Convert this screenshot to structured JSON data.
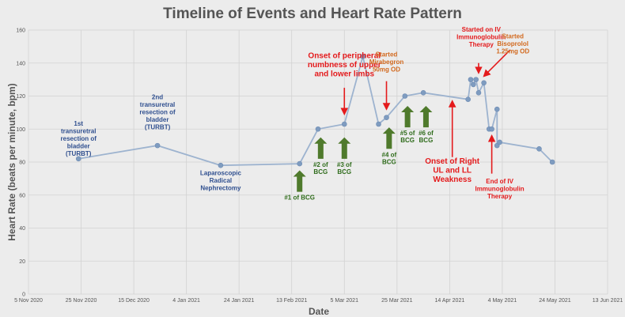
{
  "chart_data": {
    "type": "line",
    "title": "Timeline of Events and Heart Rate Pattern",
    "xlabel": "Date",
    "ylabel": "Heart Rate (beats per minute, bpm)",
    "ylim": [
      0,
      160
    ],
    "yticks": [
      0,
      20,
      40,
      60,
      80,
      100,
      120,
      140,
      160
    ],
    "xlim": [
      "2020-11-05",
      "2021-06-13"
    ],
    "xticks": [
      {
        "date": "2020-11-05",
        "label": "5 Nov 2020"
      },
      {
        "date": "2020-11-25",
        "label": "25 Nov 2020"
      },
      {
        "date": "2020-12-15",
        "label": "15 Dec 2020"
      },
      {
        "date": "2021-01-04",
        "label": "4 Jan 2021"
      },
      {
        "date": "2021-01-24",
        "label": "24 Jan 2021"
      },
      {
        "date": "2021-02-13",
        "label": "13 Feb 2021"
      },
      {
        "date": "2021-03-05",
        "label": "5 Mar 2021"
      },
      {
        "date": "2021-03-25",
        "label": "25 Mar 2021"
      },
      {
        "date": "2021-04-14",
        "label": "14 Apr 2021"
      },
      {
        "date": "2021-05-04",
        "label": "4 May 2021"
      },
      {
        "date": "2021-05-24",
        "label": "24 May 2021"
      },
      {
        "date": "2021-06-13",
        "label": "13 Jun 2021"
      }
    ],
    "grid": true,
    "line_color": "#9db3cf",
    "marker_color": "#7f9cc0",
    "series": [
      {
        "points": [
          {
            "x": "2020-11-24",
            "y": 82
          },
          {
            "x": "2020-12-24",
            "y": 90
          },
          {
            "x": "2021-01-17",
            "y": 78
          },
          {
            "x": "2021-02-16",
            "y": 79
          },
          {
            "x": "2021-02-23",
            "y": 100
          },
          {
            "x": "2021-03-05",
            "y": 103
          },
          {
            "x": "2021-03-12",
            "y": 144
          },
          {
            "x": "2021-03-18",
            "y": 103
          },
          {
            "x": "2021-03-21",
            "y": 107
          },
          {
            "x": "2021-03-28",
            "y": 120
          },
          {
            "x": "2021-04-04",
            "y": 122
          },
          {
            "x": "2021-04-21",
            "y": 118
          },
          {
            "x": "2021-04-22",
            "y": 130
          },
          {
            "x": "2021-04-23",
            "y": 127
          },
          {
            "x": "2021-04-24",
            "y": 130
          },
          {
            "x": "2021-04-25",
            "y": 122
          },
          {
            "x": "2021-04-27",
            "y": 128
          },
          {
            "x": "2021-04-29",
            "y": 100
          },
          {
            "x": "2021-04-30",
            "y": 100
          },
          {
            "x": "2021-05-02",
            "y": 112
          },
          {
            "x": "2021-05-02",
            "y": 90
          },
          {
            "x": "2021-05-03",
            "y": 92
          },
          {
            "x": "2021-05-18",
            "y": 88
          },
          {
            "x": "2021-05-23",
            "y": 80
          }
        ]
      }
    ],
    "annotations": [
      {
        "id": "turbt1",
        "lines": [
          "1st",
          "transuretral",
          "resection of",
          "bladder",
          "(TURBT)"
        ],
        "color": "#2f4f8f",
        "size": 8,
        "x": "2020-11-24",
        "y": 102
      },
      {
        "id": "turbt2",
        "lines": [
          "2nd",
          "transuretral",
          "resection of",
          "bladder",
          "(TURBT)"
        ],
        "color": "#2f4f8f",
        "size": 8,
        "x": "2020-12-24",
        "y": 118
      },
      {
        "id": "nephrectomy",
        "lines": [
          "Laparoscopic",
          "Radical",
          "Nephrectomy"
        ],
        "color": "#2f4f8f",
        "size": 8,
        "x": "2021-01-17",
        "y": 72
      },
      {
        "id": "numbness",
        "lines": [
          "Onset of peripheral",
          "numbness of upper",
          "and lower limbs"
        ],
        "color": "#e41a1c",
        "size": 10,
        "x": "2021-03-05",
        "y": 143
      },
      {
        "id": "mirabegron",
        "lines": [
          "Started",
          "Mirabegron",
          "50mg OD"
        ],
        "color": "#d2691e",
        "size": 8,
        "x": "2021-03-21",
        "y": 144
      },
      {
        "id": "right-weakness",
        "lines": [
          "Onset of Right",
          "UL and LL",
          "Weakness"
        ],
        "color": "#e41a1c",
        "size": 10,
        "x": "2021-04-15",
        "y": 79
      },
      {
        "id": "ivig-start",
        "lines": [
          "Started on IV",
          "Immunoglobulin",
          "Therapy"
        ],
        "color": "#e41a1c",
        "size": 8,
        "x": "2021-04-26",
        "y": 159
      },
      {
        "id": "bisoprolol",
        "lines": [
          "Started",
          "Bisoprolol",
          "1.25mg OD"
        ],
        "color": "#d2691e",
        "size": 8,
        "x": "2021-05-08",
        "y": 155
      },
      {
        "id": "ivig-end",
        "lines": [
          "End of IV",
          "Immunoglobulin",
          "Therapy"
        ],
        "color": "#e41a1c",
        "size": 8,
        "x": "2021-05-03",
        "y": 67
      }
    ],
    "bcg_doses": [
      {
        "id": "bcg1",
        "lines": [
          "#1 of BCG"
        ],
        "x": "2021-02-16",
        "arrow_top": 75,
        "arrow_bottom": 62
      },
      {
        "id": "bcg2",
        "lines": [
          "#2 of",
          "BCG"
        ],
        "x": "2021-02-24",
        "arrow_top": 95,
        "arrow_bottom": 82
      },
      {
        "id": "bcg3",
        "lines": [
          "#3 of",
          "BCG"
        ],
        "x": "2021-03-05",
        "arrow_top": 95,
        "arrow_bottom": 82
      },
      {
        "id": "bcg4",
        "lines": [
          "#4 of",
          "BCG"
        ],
        "x": "2021-03-22",
        "arrow_top": 101,
        "arrow_bottom": 88
      },
      {
        "id": "bcg5",
        "lines": [
          "#5 of",
          "BCG"
        ],
        "x": "2021-03-29",
        "arrow_top": 114,
        "arrow_bottom": 101
      },
      {
        "id": "bcg6",
        "lines": [
          "#6 of",
          "BCG"
        ],
        "x": "2021-04-05",
        "arrow_top": 114,
        "arrow_bottom": 101
      }
    ],
    "event_arrows": [
      {
        "id": "arrow-numbness",
        "x": "2021-03-05",
        "from_y": 125,
        "to_y": 109,
        "color": "#e41a1c"
      },
      {
        "id": "arrow-mirabegron",
        "x": "2021-03-21",
        "from_y": 129,
        "to_y": 112,
        "color": "#e41a1c"
      },
      {
        "id": "arrow-right-weakness",
        "x": "2021-04-15",
        "from_y": 83,
        "to_y": 117,
        "color": "#e41a1c"
      },
      {
        "id": "arrow-ivig-start",
        "x": "2021-04-25",
        "from_y": 140,
        "to_y": 134,
        "color": "#e41a1c"
      },
      {
        "id": "arrow-bisoprolol",
        "x": "2021-04-27",
        "from_y": 148,
        "to_y": 132,
        "color": "#e41a1c",
        "x_from": "2021-05-07"
      },
      {
        "id": "arrow-ivig-end",
        "x": "2021-04-30",
        "from_y": 73,
        "to_y": 96,
        "color": "#e41a1c"
      }
    ],
    "bcg_color": "#4f7a2c",
    "bcg_label_color": "#2e6b1a"
  }
}
